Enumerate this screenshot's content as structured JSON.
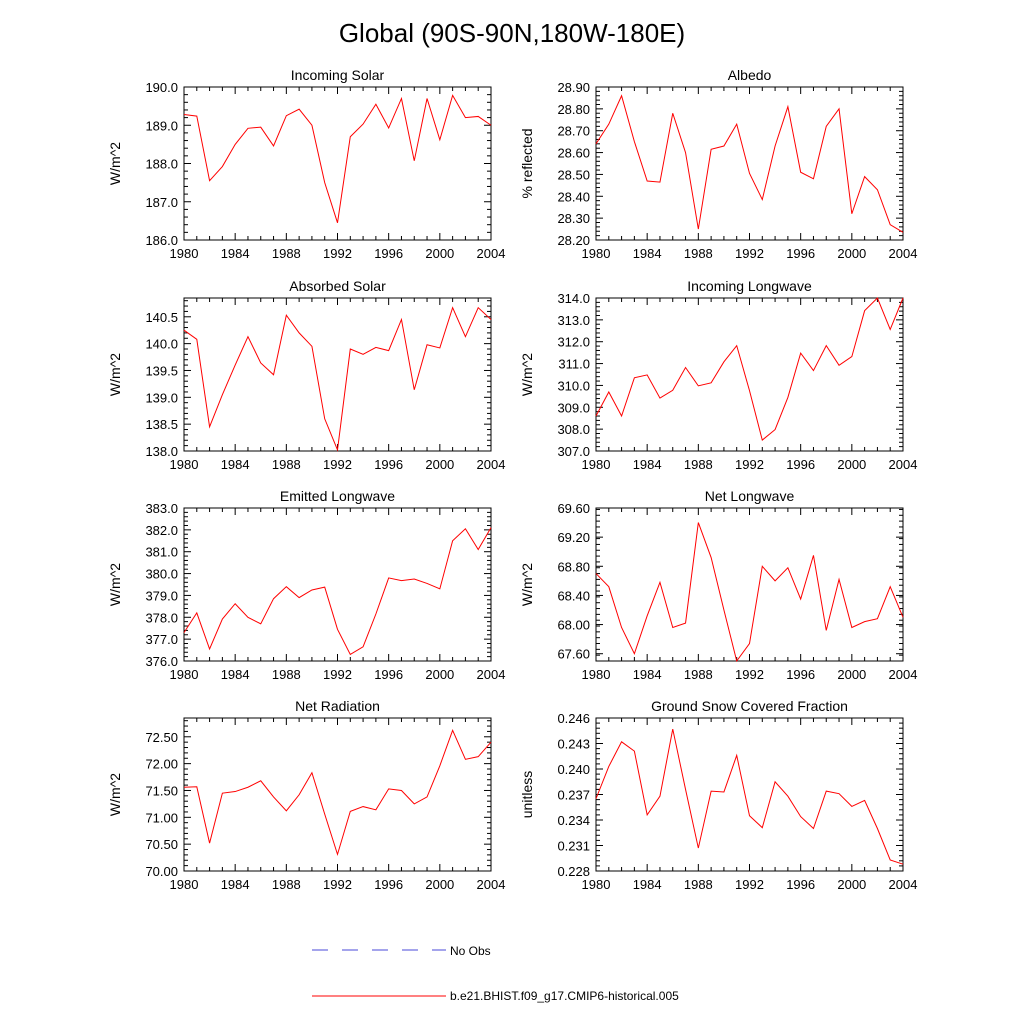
{
  "title": "Global (90S-90N,180W-180E)",
  "series_color": "#ff0000",
  "legend": {
    "obs_label": "No Obs",
    "obs_color": "#4a4ad8",
    "model_label": "b.e21.BHIST.f09_g17.CMIP6-historical.005",
    "model_color": "#ff0000"
  },
  "chart_data": [
    {
      "type": "line",
      "title": "Incoming Solar",
      "xlabel": "",
      "ylabel": "W/m^2",
      "x": [
        1980,
        1981,
        1982,
        1983,
        1984,
        1985,
        1986,
        1987,
        1988,
        1989,
        1990,
        1991,
        1992,
        1993,
        1994,
        1995,
        1996,
        1997,
        1998,
        1999,
        2000,
        2001,
        2002,
        2003,
        2004
      ],
      "values": [
        189.28,
        189.24,
        187.55,
        187.92,
        188.5,
        188.92,
        188.95,
        188.46,
        189.25,
        189.42,
        189.0,
        187.5,
        186.45,
        188.7,
        189.03,
        189.55,
        188.93,
        189.7,
        188.07,
        189.7,
        188.62,
        189.78,
        189.2,
        189.23,
        189.0
      ],
      "xlim": [
        1980,
        2004
      ],
      "ylim": [
        186.0,
        190.0
      ],
      "xticks": [
        1980,
        1984,
        1988,
        1992,
        1996,
        2000,
        2004
      ],
      "yticks": [
        186.0,
        187.0,
        188.0,
        189.0,
        190.0
      ],
      "ytick_labels": [
        "186.0",
        "187.0",
        "188.0",
        "189.0",
        "190.0"
      ]
    },
    {
      "type": "line",
      "title": "Albedo",
      "xlabel": "",
      "ylabel": "% reflected",
      "x": [
        1980,
        1981,
        1982,
        1983,
        1984,
        1985,
        1986,
        1987,
        1988,
        1989,
        1990,
        1991,
        1992,
        1993,
        1994,
        1995,
        1996,
        1997,
        1998,
        1999,
        2000,
        2001,
        2002,
        2003,
        2004
      ],
      "values": [
        28.64,
        28.73,
        28.86,
        28.65,
        28.47,
        28.465,
        28.78,
        28.6,
        28.25,
        28.615,
        28.63,
        28.73,
        28.505,
        28.385,
        28.63,
        28.81,
        28.51,
        28.48,
        28.72,
        28.8,
        28.32,
        28.49,
        28.43,
        28.27,
        28.235
      ],
      "xlim": [
        1980,
        2004
      ],
      "ylim": [
        28.2,
        28.9
      ],
      "xticks": [
        1980,
        1984,
        1988,
        1992,
        1996,
        2000,
        2004
      ],
      "yticks": [
        28.2,
        28.3,
        28.4,
        28.5,
        28.6,
        28.7,
        28.8,
        28.9
      ],
      "ytick_labels": [
        "28.20",
        "28.30",
        "28.40",
        "28.50",
        "28.60",
        "28.70",
        "28.80",
        "28.90"
      ]
    },
    {
      "type": "line",
      "title": "Absorbed Solar",
      "xlabel": "",
      "ylabel": "W/m^2",
      "x": [
        1980,
        1981,
        1982,
        1983,
        1984,
        1985,
        1986,
        1987,
        1988,
        1989,
        1990,
        1991,
        1992,
        1993,
        1994,
        1995,
        1996,
        1997,
        1998,
        1999,
        2000,
        2001,
        2002,
        2003,
        2004
      ],
      "values": [
        140.25,
        140.08,
        138.45,
        139.05,
        139.6,
        140.13,
        139.64,
        139.42,
        140.53,
        140.2,
        139.95,
        138.6,
        138.02,
        139.9,
        139.8,
        139.93,
        139.87,
        140.45,
        139.14,
        139.98,
        139.92,
        140.67,
        140.13,
        140.67,
        140.45
      ],
      "xlim": [
        1980,
        2004
      ],
      "ylim": [
        138.0,
        140.85
      ],
      "xticks": [
        1980,
        1984,
        1988,
        1992,
        1996,
        2000,
        2004
      ],
      "yticks": [
        138.0,
        138.5,
        139.0,
        139.5,
        140.0,
        140.5
      ],
      "ytick_labels": [
        "138.0",
        "138.5",
        "139.0",
        "139.5",
        "140.0",
        "140.5"
      ]
    },
    {
      "type": "line",
      "title": "Incoming Longwave",
      "xlabel": "",
      "ylabel": "W/m^2",
      "x": [
        1980,
        1981,
        1982,
        1983,
        1984,
        1985,
        1986,
        1987,
        1988,
        1989,
        1990,
        1991,
        1992,
        1993,
        1994,
        1995,
        1996,
        1997,
        1998,
        1999,
        2000,
        2001,
        2002,
        2003,
        2004
      ],
      "values": [
        308.6,
        309.7,
        308.6,
        310.35,
        310.48,
        309.42,
        309.78,
        310.82,
        309.98,
        310.12,
        311.08,
        311.82,
        309.76,
        307.5,
        307.98,
        309.45,
        311.48,
        310.68,
        311.82,
        310.92,
        311.32,
        313.42,
        314.0,
        312.56,
        314.0
      ],
      "xlim": [
        1980,
        2004
      ],
      "ylim": [
        307.0,
        314.0
      ],
      "xticks": [
        1980,
        1984,
        1988,
        1992,
        1996,
        2000,
        2004
      ],
      "yticks": [
        307.0,
        308.0,
        309.0,
        310.0,
        311.0,
        312.0,
        313.0,
        314.0
      ],
      "ytick_labels": [
        "307.0",
        "308.0",
        "309.0",
        "310.0",
        "311.0",
        "312.0",
        "313.0",
        "314.0"
      ]
    },
    {
      "type": "line",
      "title": "Emitted Longwave",
      "xlabel": "",
      "ylabel": "W/m^2",
      "x": [
        1980,
        1981,
        1982,
        1983,
        1984,
        1985,
        1986,
        1987,
        1988,
        1989,
        1990,
        1991,
        1992,
        1993,
        1994,
        1995,
        1996,
        1997,
        1998,
        1999,
        2000,
        2001,
        2002,
        2003,
        2004
      ],
      "values": [
        377.3,
        378.2,
        376.55,
        377.92,
        378.62,
        378.0,
        377.7,
        378.85,
        379.4,
        378.9,
        379.25,
        379.38,
        377.45,
        376.3,
        376.65,
        378.15,
        379.8,
        379.68,
        379.75,
        379.55,
        379.3,
        381.5,
        382.05,
        381.1,
        382.1
      ],
      "xlim": [
        1980,
        2004
      ],
      "ylim": [
        376.0,
        383.0
      ],
      "xticks": [
        1980,
        1984,
        1988,
        1992,
        1996,
        2000,
        2004
      ],
      "yticks": [
        376.0,
        377.0,
        378.0,
        379.0,
        380.0,
        381.0,
        382.0,
        383.0
      ],
      "ytick_labels": [
        "376.0",
        "377.0",
        "378.0",
        "379.0",
        "380.0",
        "381.0",
        "382.0",
        "383.0"
      ]
    },
    {
      "type": "line",
      "title": "Net Longwave",
      "xlabel": "",
      "ylabel": "W/m^2",
      "x": [
        1980,
        1981,
        1982,
        1983,
        1984,
        1985,
        1986,
        1987,
        1988,
        1989,
        1990,
        1991,
        1992,
        1993,
        1994,
        1995,
        1996,
        1997,
        1998,
        1999,
        2000,
        2001,
        2002,
        2003,
        2004
      ],
      "values": [
        68.7,
        68.52,
        67.96,
        67.6,
        68.12,
        68.58,
        67.96,
        68.02,
        69.4,
        68.92,
        68.2,
        67.5,
        67.74,
        68.8,
        68.6,
        68.78,
        68.35,
        68.95,
        67.92,
        68.62,
        67.96,
        68.04,
        68.08,
        68.52,
        68.1
      ],
      "xlim": [
        1980,
        2004
      ],
      "ylim": [
        67.5,
        69.6
      ],
      "xticks": [
        1980,
        1984,
        1988,
        1992,
        1996,
        2000,
        2004
      ],
      "yticks": [
        67.6,
        68.0,
        68.4,
        68.8,
        69.2,
        69.6
      ],
      "ytick_labels": [
        "67.60",
        "68.00",
        "68.40",
        "68.80",
        "69.20",
        "69.60"
      ]
    },
    {
      "type": "line",
      "title": "Net Radiation",
      "xlabel": "",
      "ylabel": "W/m^2",
      "x": [
        1980,
        1981,
        1982,
        1983,
        1984,
        1985,
        1986,
        1987,
        1988,
        1989,
        1990,
        1991,
        1992,
        1993,
        1994,
        1995,
        1996,
        1997,
        1998,
        1999,
        2000,
        2001,
        2002,
        2003,
        2004
      ],
      "values": [
        71.56,
        71.57,
        70.52,
        71.45,
        71.48,
        71.56,
        71.68,
        71.38,
        71.12,
        71.42,
        71.83,
        71.06,
        70.31,
        71.11,
        71.2,
        71.14,
        71.53,
        71.5,
        71.25,
        71.38,
        71.96,
        72.62,
        72.08,
        72.13,
        72.4
      ],
      "xlim": [
        1980,
        2004
      ],
      "ylim": [
        70.0,
        72.85
      ],
      "xticks": [
        1980,
        1984,
        1988,
        1992,
        1996,
        2000,
        2004
      ],
      "yticks": [
        70.0,
        70.5,
        71.0,
        71.5,
        72.0,
        72.5
      ],
      "ytick_labels": [
        "70.00",
        "70.50",
        "71.00",
        "71.50",
        "72.00",
        "72.50"
      ]
    },
    {
      "type": "line",
      "title": "Ground Snow Covered Fraction",
      "xlabel": "",
      "ylabel": "unitless",
      "x": [
        1980,
        1981,
        1982,
        1983,
        1984,
        1985,
        1986,
        1987,
        1988,
        1989,
        1990,
        1991,
        1992,
        1993,
        1994,
        1995,
        1996,
        1997,
        1998,
        1999,
        2000,
        2001,
        2002,
        2003,
        2004
      ],
      "values": [
        0.2365,
        0.2403,
        0.2432,
        0.2421,
        0.2346,
        0.2368,
        0.2447,
        0.2376,
        0.2307,
        0.2374,
        0.2373,
        0.2416,
        0.2345,
        0.2331,
        0.2385,
        0.2368,
        0.2344,
        0.233,
        0.2374,
        0.2371,
        0.2356,
        0.2363,
        0.233,
        0.2293,
        0.2288
      ],
      "xlim": [
        1980,
        2004
      ],
      "ylim": [
        0.228,
        0.246
      ],
      "xticks": [
        1980,
        1984,
        1988,
        1992,
        1996,
        2000,
        2004
      ],
      "yticks": [
        0.228,
        0.231,
        0.234,
        0.237,
        0.24,
        0.243,
        0.246
      ],
      "ytick_labels": [
        "0.228",
        "0.231",
        "0.234",
        "0.237",
        "0.240",
        "0.243",
        "0.246"
      ]
    }
  ]
}
